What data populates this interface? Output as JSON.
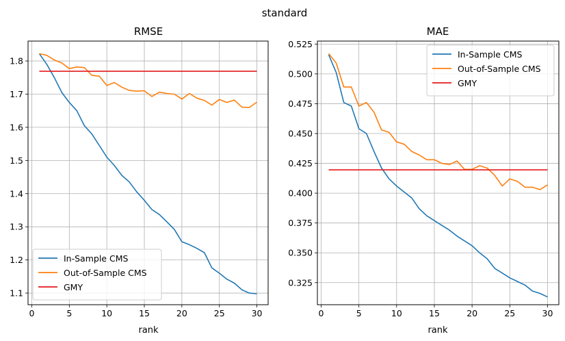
{
  "suptitle": "standard",
  "colors": {
    "in_sample": "#1f77b4",
    "out_of_sample": "#ff7f0e",
    "gmy": "#e41a1c"
  },
  "chart_data": [
    {
      "type": "line",
      "title": "RMSE",
      "xlabel": "rank",
      "ylabel": "",
      "xlim": [
        -0.5,
        31.5
      ],
      "ylim": [
        1.065,
        1.86
      ],
      "xticks": [
        0,
        5,
        10,
        15,
        20,
        25,
        30
      ],
      "xtick_labels": [
        "0",
        "5",
        "10",
        "15",
        "20",
        "25",
        "30"
      ],
      "yticks": [
        1.1,
        1.2,
        1.3,
        1.4,
        1.5,
        1.6,
        1.7,
        1.8
      ],
      "ytick_labels": [
        "1.1",
        "1.2",
        "1.3",
        "1.4",
        "1.5",
        "1.6",
        "1.7",
        "1.8"
      ],
      "grid": true,
      "legend_position": "lower-left",
      "x": [
        1,
        2,
        3,
        4,
        5,
        6,
        7,
        8,
        9,
        10,
        11,
        12,
        13,
        14,
        15,
        16,
        17,
        18,
        19,
        20,
        21,
        22,
        23,
        24,
        25,
        26,
        27,
        28,
        29,
        30
      ],
      "series": [
        {
          "name": "In-Sample CMS",
          "color_key": "in_sample",
          "values": [
            1.822,
            1.79,
            1.75,
            1.705,
            1.675,
            1.65,
            1.605,
            1.58,
            1.545,
            1.51,
            1.485,
            1.455,
            1.435,
            1.405,
            1.38,
            1.352,
            1.337,
            1.315,
            1.292,
            1.255,
            1.246,
            1.235,
            1.222,
            1.176,
            1.16,
            1.142,
            1.13,
            1.11,
            1.1,
            1.098
          ]
        },
        {
          "name": "Out-of-Sample CMS",
          "color_key": "out_of_sample",
          "values": [
            1.822,
            1.817,
            1.803,
            1.794,
            1.777,
            1.782,
            1.78,
            1.757,
            1.754,
            1.726,
            1.735,
            1.721,
            1.711,
            1.709,
            1.71,
            1.693,
            1.706,
            1.702,
            1.7,
            1.685,
            1.702,
            1.688,
            1.681,
            1.667,
            1.684,
            1.675,
            1.682,
            1.661,
            1.66,
            1.676
          ]
        },
        {
          "name": "GMY",
          "color_key": "gmy",
          "values": [
            1.769,
            1.769,
            1.769,
            1.769,
            1.769,
            1.769,
            1.769,
            1.769,
            1.769,
            1.769,
            1.769,
            1.769,
            1.769,
            1.769,
            1.769,
            1.769,
            1.769,
            1.769,
            1.769,
            1.769,
            1.769,
            1.769,
            1.769,
            1.769,
            1.769,
            1.769,
            1.769,
            1.769,
            1.769,
            1.769
          ]
        }
      ]
    },
    {
      "type": "line",
      "title": "MAE",
      "xlabel": "rank",
      "ylabel": "",
      "xlim": [
        -0.5,
        31.5
      ],
      "ylim": [
        0.3065,
        0.5275
      ],
      "xticks": [
        0,
        5,
        10,
        15,
        20,
        25,
        30
      ],
      "xtick_labels": [
        "0",
        "5",
        "10",
        "15",
        "20",
        "25",
        "30"
      ],
      "yticks": [
        0.325,
        0.35,
        0.375,
        0.4,
        0.425,
        0.45,
        0.475,
        0.5,
        0.525
      ],
      "ytick_labels": [
        "0.325",
        "0.350",
        "0.375",
        "0.400",
        "0.425",
        "0.450",
        "0.475",
        "0.500",
        "0.525"
      ],
      "grid": true,
      "legend_position": "upper-right",
      "x": [
        1,
        2,
        3,
        4,
        5,
        6,
        7,
        8,
        9,
        10,
        11,
        12,
        13,
        14,
        15,
        16,
        17,
        18,
        19,
        20,
        21,
        22,
        23,
        24,
        25,
        26,
        27,
        28,
        29,
        30
      ],
      "series": [
        {
          "name": "In-Sample CMS",
          "color_key": "in_sample",
          "values": [
            0.516,
            0.501,
            0.476,
            0.473,
            0.454,
            0.45,
            0.435,
            0.421,
            0.412,
            0.406,
            0.401,
            0.396,
            0.387,
            0.381,
            0.377,
            0.373,
            0.369,
            0.364,
            0.36,
            0.356,
            0.35,
            0.345,
            0.337,
            0.333,
            0.329,
            0.326,
            0.323,
            0.318,
            0.316,
            0.313
          ]
        },
        {
          "name": "Out-of-Sample CMS",
          "color_key": "out_of_sample",
          "values": [
            0.517,
            0.509,
            0.489,
            0.489,
            0.473,
            0.476,
            0.468,
            0.453,
            0.451,
            0.443,
            0.441,
            0.435,
            0.432,
            0.428,
            0.428,
            0.425,
            0.424,
            0.427,
            0.42,
            0.42,
            0.423,
            0.421,
            0.415,
            0.406,
            0.412,
            0.41,
            0.405,
            0.405,
            0.403,
            0.407
          ]
        },
        {
          "name": "GMY",
          "color_key": "gmy",
          "values": [
            0.4195,
            0.4195,
            0.4195,
            0.4195,
            0.4195,
            0.4195,
            0.4195,
            0.4195,
            0.4195,
            0.4195,
            0.4195,
            0.4195,
            0.4195,
            0.4195,
            0.4195,
            0.4195,
            0.4195,
            0.4195,
            0.4195,
            0.4195,
            0.4195,
            0.4195,
            0.4195,
            0.4195,
            0.4195,
            0.4195,
            0.4195,
            0.4195,
            0.4195,
            0.4195
          ]
        }
      ]
    }
  ]
}
